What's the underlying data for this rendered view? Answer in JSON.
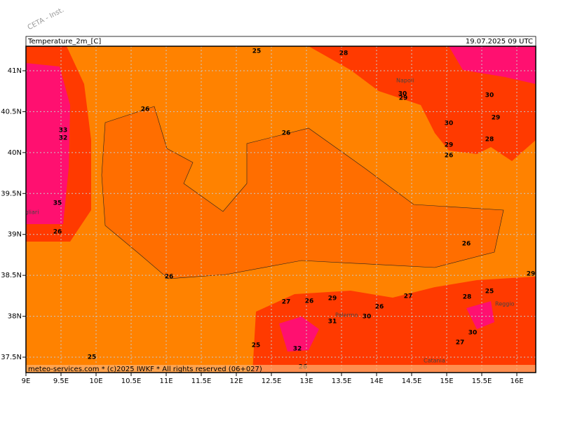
{
  "header": {
    "watermark": "CETA - Inst.",
    "title": "Temperature_2m_[C]",
    "date": "19.07.2025 09 UTC"
  },
  "footer": "meteo-services.com * (c)2025 IWKF * All rights reserved (06+027)",
  "lon_labels": [
    "9E",
    "9.5E",
    "10E",
    "10.5E",
    "11E",
    "11.5E",
    "12E",
    "12.5E",
    "13E",
    "13.5E",
    "14E",
    "14.5E",
    "15E",
    "15.5E",
    "16E"
  ],
  "lat_labels": [
    "37.5N",
    "38N",
    "38.5N",
    "39N",
    "39.5N",
    "40N",
    "40.5N",
    "41N"
  ],
  "cities": [
    "Napoli",
    "Palermo",
    "Catania",
    "Cagliari",
    "Reggio"
  ],
  "contour_labels": [
    "25",
    "26",
    "26",
    "26",
    "26",
    "25",
    "25",
    "33",
    "32",
    "35",
    "26",
    "30",
    "30",
    "29",
    "30",
    "28",
    "29",
    "26",
    "29",
    "31",
    "30",
    "26",
    "27",
    "27",
    "26",
    "32",
    "26",
    "29",
    "25",
    "28",
    "30",
    "27",
    "28",
    "29"
  ]
}
